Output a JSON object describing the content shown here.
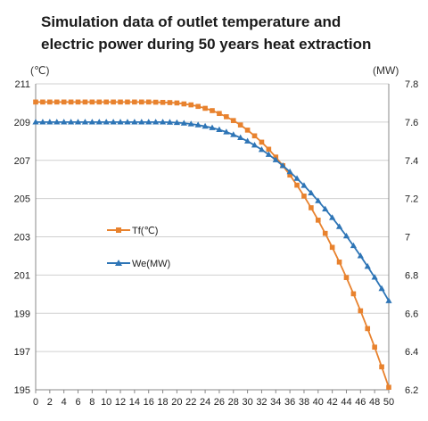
{
  "chart_data": {
    "type": "line",
    "title_lines": [
      "Simulation data of outlet temperature and",
      "electric power during 50 years heat extraction"
    ],
    "y_left_unit": "(℃)",
    "y_right_unit": "(MW)",
    "y_left_range": [
      195,
      211
    ],
    "y_left_ticks": [
      "195",
      "197",
      "199",
      "201",
      "203",
      "205",
      "207",
      "209",
      "211"
    ],
    "y_right_range": [
      6.2,
      7.8
    ],
    "y_right_ticks": [
      "6.2",
      "6.4",
      "6.6",
      "6.8",
      "7",
      "7.2",
      "7.4",
      "7.6",
      "7.8"
    ],
    "x": [
      0,
      1,
      2,
      3,
      4,
      5,
      6,
      7,
      8,
      9,
      10,
      11,
      12,
      13,
      14,
      15,
      16,
      17,
      18,
      19,
      20,
      21,
      22,
      23,
      24,
      25,
      26,
      27,
      28,
      29,
      30,
      31,
      32,
      33,
      34,
      35,
      36,
      37,
      38,
      39,
      40,
      41,
      42,
      43,
      44,
      45,
      46,
      47,
      48,
      49,
      50
    ],
    "x_tick_labels": [
      "0",
      "2",
      "4",
      "6",
      "8",
      "10",
      "12",
      "14",
      "16",
      "18",
      "20",
      "22",
      "24",
      "26",
      "28",
      "30",
      "32",
      "34",
      "36",
      "38",
      "40",
      "42",
      "44",
      "46",
      "48",
      "50"
    ],
    "grid": "horizontal",
    "legend_placement": "left-middle",
    "series": [
      {
        "name": "Tf(℃)",
        "axis": "left",
        "color": "#E8822E",
        "marker": "square",
        "values": [
          210.05,
          210.05,
          210.05,
          210.05,
          210.05,
          210.05,
          210.05,
          210.05,
          210.05,
          210.05,
          210.05,
          210.05,
          210.05,
          210.05,
          210.05,
          210.05,
          210.05,
          210.04,
          210.03,
          210.02,
          210.0,
          209.95,
          209.9,
          209.82,
          209.72,
          209.6,
          209.45,
          209.28,
          209.08,
          208.85,
          208.58,
          208.28,
          207.95,
          207.58,
          207.17,
          206.72,
          206.23,
          205.7,
          205.13,
          204.52,
          203.87,
          203.18,
          202.45,
          201.68,
          200.87,
          200.02,
          199.13,
          198.2,
          197.23,
          196.2,
          195.13
        ]
      },
      {
        "name": "We(MW)",
        "axis": "right",
        "color": "#2E75B6",
        "marker": "triangle",
        "values": [
          7.6,
          7.6,
          7.6,
          7.6,
          7.6,
          7.6,
          7.6,
          7.6,
          7.6,
          7.6,
          7.6,
          7.6,
          7.6,
          7.6,
          7.6,
          7.6,
          7.6,
          7.6,
          7.6,
          7.599,
          7.597,
          7.594,
          7.59,
          7.585,
          7.578,
          7.57,
          7.56,
          7.548,
          7.534,
          7.518,
          7.5,
          7.479,
          7.456,
          7.43,
          7.402,
          7.372,
          7.34,
          7.305,
          7.268,
          7.229,
          7.188,
          7.145,
          7.1,
          7.053,
          7.004,
          6.953,
          6.9,
          6.845,
          6.788,
          6.729,
          6.665
        ]
      }
    ]
  }
}
